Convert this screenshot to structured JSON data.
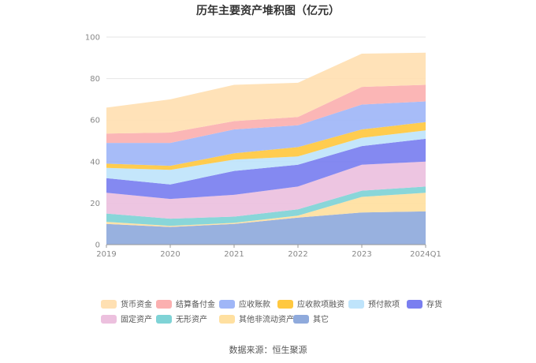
{
  "chart_data": {
    "type": "area",
    "stacked": true,
    "title": "历年主要资产堆积图（亿元）",
    "categories": [
      "2019",
      "2020",
      "2021",
      "2022",
      "2023",
      "2024Q1"
    ],
    "ylim": [
      0,
      100
    ],
    "yticks": [
      0,
      20,
      40,
      60,
      80,
      100
    ],
    "grid": true,
    "legend_position": "bottom",
    "series": [
      {
        "name": "其它",
        "color": "#8faadc",
        "values": [
          10,
          8.5,
          10,
          13,
          15.5,
          16
        ]
      },
      {
        "name": "其他非流动资产",
        "color": "#ffe0a0",
        "values": [
          1,
          0.5,
          0.5,
          1,
          7.5,
          9
        ]
      },
      {
        "name": "无形资产",
        "color": "#7fd3d6",
        "values": [
          4,
          3.5,
          3,
          3,
          3,
          3
        ]
      },
      {
        "name": "固定资产",
        "color": "#ecc0de",
        "values": [
          10,
          9.5,
          10.5,
          11,
          12.5,
          12
        ]
      },
      {
        "name": "存货",
        "color": "#7a7ff0",
        "values": [
          7,
          7,
          11.5,
          10.5,
          9,
          11
        ]
      },
      {
        "name": "预付款项",
        "color": "#bfe4fb",
        "values": [
          5,
          7,
          5.5,
          4,
          4,
          4
        ]
      },
      {
        "name": "应收款项融资",
        "color": "#ffc840",
        "values": [
          2,
          2,
          3,
          4.5,
          4,
          4
        ]
      },
      {
        "name": "应收账款",
        "color": "#9fb6f7",
        "values": [
          10,
          11,
          11.5,
          10.5,
          12,
          10
        ]
      },
      {
        "name": "结算备付金",
        "color": "#fbb0b0",
        "values": [
          4.5,
          5,
          4,
          4,
          8.5,
          8
        ]
      },
      {
        "name": "货币资金",
        "color": "#ffe0b2",
        "values": [
          12.5,
          16,
          17.5,
          16.5,
          16,
          15.5
        ]
      }
    ],
    "legend_order": [
      "货币资金",
      "结算备付金",
      "应收账款",
      "应收款项融资",
      "预付款项",
      "存货",
      "固定资产",
      "无形资产",
      "其他非流动资产",
      "其它"
    ]
  },
  "source_text": "数据来源：恒生聚源"
}
